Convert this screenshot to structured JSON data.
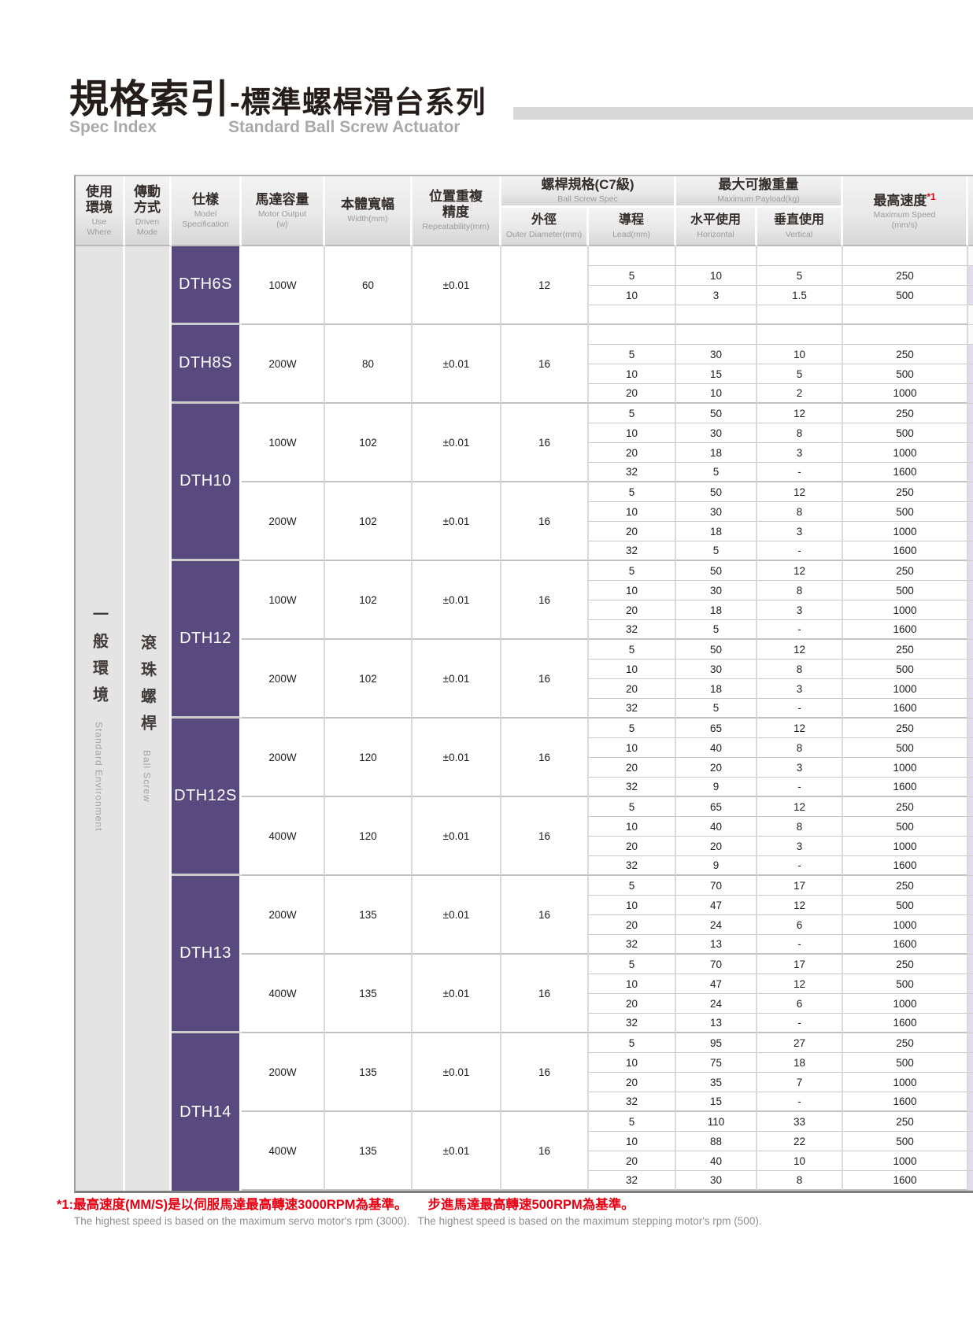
{
  "page": {
    "title_zh": "規格索引",
    "title_zh2": "-標準螺桿滑台系列",
    "subtitle_left": "Spec Index",
    "subtitle_right": "Standard Ball Screw Actuator"
  },
  "table": {
    "headers": {
      "use_where": {
        "zh": "使用\n環境",
        "en": "Use\nWhere"
      },
      "driven_mode": {
        "zh": "傳動\n方式",
        "en": "Driven\nMode"
      },
      "model": {
        "zh": "仕樣",
        "en": "Model\nSpecification"
      },
      "motor_output": {
        "zh": "馬達容量",
        "en": "Motor Output\n(w)"
      },
      "body_width": {
        "zh": "本體寬幅",
        "en": "Width(mm)"
      },
      "repeatability": {
        "zh": "位置重複\n精度",
        "en": "Repeatability(mm)"
      },
      "ball_screw_spec": {
        "zh": "螺桿規格(C7級)",
        "en": "Ball Screw Spec"
      },
      "outer_diameter": {
        "zh": "外徑",
        "en": "Outer Diameter(mm)"
      },
      "lead": {
        "zh": "導程",
        "en": "Lead(mm)"
      },
      "max_payload": {
        "zh": "最大可搬重量",
        "en": "Maximum Payload(kg)"
      },
      "horizontal": {
        "zh": "水平使用",
        "en": "Horizontal"
      },
      "vertical": {
        "zh": "垂直使用",
        "en": "Vertical"
      },
      "max_speed": {
        "zh": "最高速度",
        "marker": "*1",
        "en": "Maximum Speed\n(mm/s)"
      }
    },
    "side": {
      "environment_zh": "一般環境",
      "environment_en": "Standard Environment",
      "driven_zh": "滾珠螺桿",
      "driven_en": "Ball Screw"
    },
    "models": [
      {
        "name": "DTH6S",
        "groups": [
          {
            "motor": "100W",
            "width": "60",
            "repeatability": "±0.01",
            "outer_diameter": "12",
            "rows": [
              [
                "",
                "",
                "",
                ""
              ],
              [
                "5",
                "10",
                "5",
                "250"
              ],
              [
                "10",
                "3",
                "1.5",
                "500"
              ],
              [
                "",
                "",
                "",
                ""
              ]
            ]
          }
        ]
      },
      {
        "name": "DTH8S",
        "groups": [
          {
            "motor": "200W",
            "width": "80",
            "repeatability": "±0.01",
            "outer_diameter": "16",
            "rows": [
              [
                "",
                "",
                "",
                ""
              ],
              [
                "5",
                "30",
                "10",
                "250"
              ],
              [
                "10",
                "15",
                "5",
                "500"
              ],
              [
                "20",
                "10",
                "2",
                "1000"
              ]
            ]
          }
        ]
      },
      {
        "name": "DTH10",
        "groups": [
          {
            "motor": "100W",
            "width": "102",
            "repeatability": "±0.01",
            "outer_diameter": "16",
            "rows": [
              [
                "5",
                "50",
                "12",
                "250"
              ],
              [
                "10",
                "30",
                "8",
                "500"
              ],
              [
                "20",
                "18",
                "3",
                "1000"
              ],
              [
                "32",
                "5",
                "-",
                "1600"
              ]
            ]
          },
          {
            "motor": "200W",
            "width": "102",
            "repeatability": "±0.01",
            "outer_diameter": "16",
            "rows": [
              [
                "5",
                "50",
                "12",
                "250"
              ],
              [
                "10",
                "30",
                "8",
                "500"
              ],
              [
                "20",
                "18",
                "3",
                "1000"
              ],
              [
                "32",
                "5",
                "-",
                "1600"
              ]
            ]
          }
        ]
      },
      {
        "name": "DTH12",
        "groups": [
          {
            "motor": "100W",
            "width": "102",
            "repeatability": "±0.01",
            "outer_diameter": "16",
            "rows": [
              [
                "5",
                "50",
                "12",
                "250"
              ],
              [
                "10",
                "30",
                "8",
                "500"
              ],
              [
                "20",
                "18",
                "3",
                "1000"
              ],
              [
                "32",
                "5",
                "-",
                "1600"
              ]
            ]
          },
          {
            "motor": "200W",
            "width": "102",
            "repeatability": "±0.01",
            "outer_diameter": "16",
            "rows": [
              [
                "5",
                "50",
                "12",
                "250"
              ],
              [
                "10",
                "30",
                "8",
                "500"
              ],
              [
                "20",
                "18",
                "3",
                "1000"
              ],
              [
                "32",
                "5",
                "-",
                "1600"
              ]
            ]
          }
        ]
      },
      {
        "name": "DTH12S",
        "groups": [
          {
            "motor": "200W",
            "width": "120",
            "repeatability": "±0.01",
            "outer_diameter": "16",
            "rows": [
              [
                "5",
                "65",
                "12",
                "250"
              ],
              [
                "10",
                "40",
                "8",
                "500"
              ],
              [
                "20",
                "20",
                "3",
                "1000"
              ],
              [
                "32",
                "9",
                "-",
                "1600"
              ]
            ]
          },
          {
            "motor": "400W",
            "width": "120",
            "repeatability": "±0.01",
            "outer_diameter": "16",
            "rows": [
              [
                "5",
                "65",
                "12",
                "250"
              ],
              [
                "10",
                "40",
                "8",
                "500"
              ],
              [
                "20",
                "20",
                "3",
                "1000"
              ],
              [
                "32",
                "9",
                "-",
                "1600"
              ]
            ]
          }
        ]
      },
      {
        "name": "DTH13",
        "groups": [
          {
            "motor": "200W",
            "width": "135",
            "repeatability": "±0.01",
            "outer_diameter": "16",
            "rows": [
              [
                "5",
                "70",
                "17",
                "250"
              ],
              [
                "10",
                "47",
                "12",
                "500"
              ],
              [
                "20",
                "24",
                "6",
                "1000"
              ],
              [
                "32",
                "13",
                "-",
                "1600"
              ]
            ]
          },
          {
            "motor": "400W",
            "width": "135",
            "repeatability": "±0.01",
            "outer_diameter": "16",
            "rows": [
              [
                "5",
                "70",
                "17",
                "250"
              ],
              [
                "10",
                "47",
                "12",
                "500"
              ],
              [
                "20",
                "24",
                "6",
                "1000"
              ],
              [
                "32",
                "13",
                "-",
                "1600"
              ]
            ]
          }
        ]
      },
      {
        "name": "DTH14",
        "groups": [
          {
            "motor": "200W",
            "width": "135",
            "repeatability": "±0.01",
            "outer_diameter": "16",
            "rows": [
              [
                "5",
                "95",
                "27",
                "250"
              ],
              [
                "10",
                "75",
                "18",
                "500"
              ],
              [
                "20",
                "35",
                "7",
                "1000"
              ],
              [
                "32",
                "15",
                "-",
                "1600"
              ]
            ]
          },
          {
            "motor": "400W",
            "width": "135",
            "repeatability": "±0.01",
            "outer_diameter": "16",
            "rows": [
              [
                "5",
                "110",
                "33",
                "250"
              ],
              [
                "10",
                "88",
                "22",
                "500"
              ],
              [
                "20",
                "40",
                "10",
                "1000"
              ],
              [
                "32",
                "30",
                "8",
                "1600"
              ]
            ]
          }
        ]
      }
    ]
  },
  "footnote": {
    "red_1": "*1:最高速度(MM/S)是以伺服馬達最高轉速3000RPM為基準。",
    "red_2": "步進馬達最高轉速500RPM為基準。",
    "gray_1": "The highest speed is based on the maximum servo motor's rpm (3000).",
    "gray_2": "The highest speed is based on the maximum stepping motor's rpm (500)."
  },
  "colors": {
    "model_purple": "#584a7e",
    "footnote_red": "#e60012",
    "side_gray": "#e4e4e4"
  }
}
